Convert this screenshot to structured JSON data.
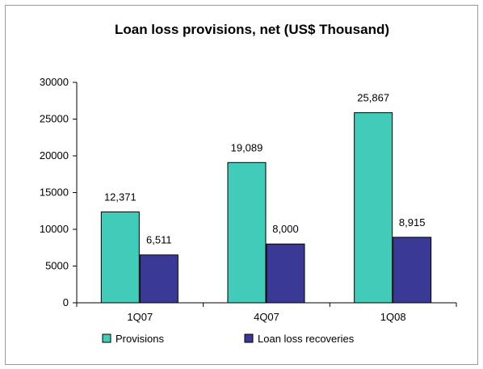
{
  "chart_data": {
    "type": "bar",
    "title": "Loan loss provisions, net (US$ Thousand)",
    "categories": [
      "1Q07",
      "4Q07",
      "1Q08"
    ],
    "series": [
      {
        "name": "Provisions",
        "values": [
          12371,
          19089,
          25867
        ],
        "labels": [
          "12,371",
          "19,089",
          "25,867"
        ],
        "color": "#40ccb8"
      },
      {
        "name": "Loan loss recoveries",
        "values": [
          6511,
          8000,
          8915
        ],
        "labels": [
          "6,511",
          "8,000",
          "8,915"
        ],
        "color": "#3a3a96"
      }
    ],
    "ylim": [
      0,
      30000
    ],
    "yticks": [
      "0",
      "5000",
      "10000",
      "15000",
      "20000",
      "25000",
      "30000"
    ],
    "grid": false,
    "legend_position": "bottom"
  }
}
